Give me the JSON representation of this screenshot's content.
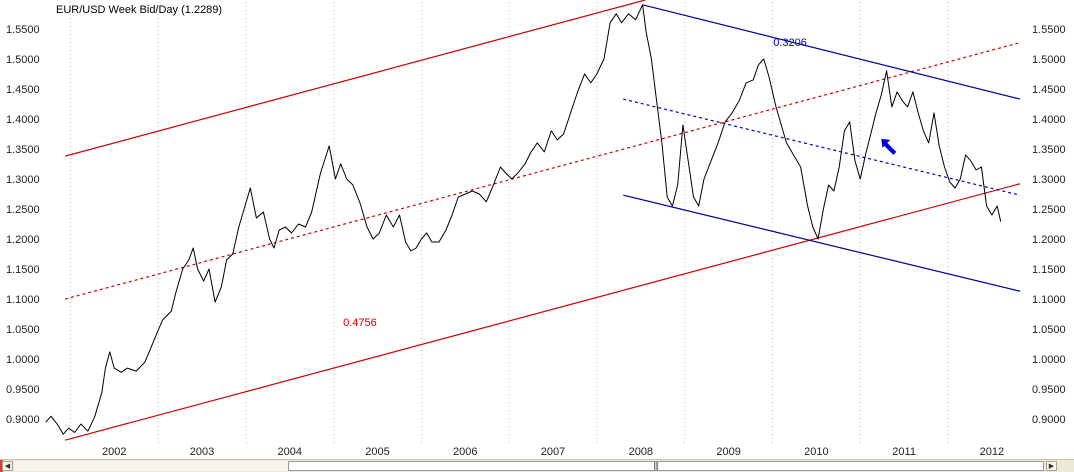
{
  "chart_data": {
    "type": "line",
    "title": "EUR/USD Week Bid/Day (1.2289)",
    "instrument": "EUR/USD",
    "last_value": 1.2289,
    "xlabel": "",
    "ylabel": "",
    "x_ticks": [
      "2002",
      "2003",
      "2004",
      "2005",
      "2006",
      "2007",
      "2008",
      "2009",
      "2010",
      "2011",
      "2012"
    ],
    "y_ticks": [
      "0.9000",
      "0.9500",
      "1.0000",
      "1.0500",
      "1.1000",
      "1.1500",
      "1.2000",
      "1.2500",
      "1.3000",
      "1.3500",
      "1.4000",
      "1.4500",
      "1.5000",
      "1.5500"
    ],
    "xlim": [
      2001.7,
      2012.9
    ],
    "ylim": [
      0.862,
      1.598
    ],
    "grid": "vertical-dotted",
    "y_axis_labels_both_sides": true,
    "series": [
      {
        "color": "#000000",
        "points": [
          [
            2001.72,
            0.895
          ],
          [
            2001.78,
            0.905
          ],
          [
            2001.86,
            0.89
          ],
          [
            2001.92,
            0.875
          ],
          [
            2001.98,
            0.885
          ],
          [
            2002.05,
            0.878
          ],
          [
            2002.12,
            0.892
          ],
          [
            2002.2,
            0.88
          ],
          [
            2002.28,
            0.905
          ],
          [
            2002.36,
            0.945
          ],
          [
            2002.4,
            0.985
          ],
          [
            2002.45,
            1.012
          ],
          [
            2002.5,
            0.985
          ],
          [
            2002.58,
            0.978
          ],
          [
            2002.65,
            0.985
          ],
          [
            2002.75,
            0.98
          ],
          [
            2002.85,
            0.995
          ],
          [
            2002.95,
            1.03
          ],
          [
            2003.05,
            1.065
          ],
          [
            2003.15,
            1.08
          ],
          [
            2003.2,
            1.11
          ],
          [
            2003.28,
            1.15
          ],
          [
            2003.35,
            1.165
          ],
          [
            2003.4,
            1.185
          ],
          [
            2003.45,
            1.15
          ],
          [
            2003.52,
            1.13
          ],
          [
            2003.58,
            1.15
          ],
          [
            2003.65,
            1.095
          ],
          [
            2003.72,
            1.12
          ],
          [
            2003.78,
            1.165
          ],
          [
            2003.85,
            1.175
          ],
          [
            2003.92,
            1.22
          ],
          [
            2004.0,
            1.26
          ],
          [
            2004.05,
            1.285
          ],
          [
            2004.12,
            1.235
          ],
          [
            2004.2,
            1.245
          ],
          [
            2004.27,
            1.2
          ],
          [
            2004.32,
            1.185
          ],
          [
            2004.38,
            1.215
          ],
          [
            2004.45,
            1.22
          ],
          [
            2004.52,
            1.21
          ],
          [
            2004.6,
            1.225
          ],
          [
            2004.68,
            1.22
          ],
          [
            2004.75,
            1.245
          ],
          [
            2004.85,
            1.31
          ],
          [
            2004.95,
            1.355
          ],
          [
            2005.02,
            1.3
          ],
          [
            2005.08,
            1.325
          ],
          [
            2005.15,
            1.3
          ],
          [
            2005.22,
            1.29
          ],
          [
            2005.3,
            1.26
          ],
          [
            2005.38,
            1.22
          ],
          [
            2005.45,
            1.2
          ],
          [
            2005.52,
            1.21
          ],
          [
            2005.6,
            1.24
          ],
          [
            2005.68,
            1.22
          ],
          [
            2005.75,
            1.24
          ],
          [
            2005.82,
            1.195
          ],
          [
            2005.88,
            1.18
          ],
          [
            2005.94,
            1.185
          ],
          [
            2006.0,
            1.2
          ],
          [
            2006.06,
            1.21
          ],
          [
            2006.12,
            1.195
          ],
          [
            2006.2,
            1.195
          ],
          [
            2006.28,
            1.215
          ],
          [
            2006.35,
            1.24
          ],
          [
            2006.42,
            1.27
          ],
          [
            2006.5,
            1.275
          ],
          [
            2006.58,
            1.28
          ],
          [
            2006.66,
            1.275
          ],
          [
            2006.74,
            1.262
          ],
          [
            2006.82,
            1.29
          ],
          [
            2006.9,
            1.32
          ],
          [
            2006.96,
            1.31
          ],
          [
            2007.03,
            1.3
          ],
          [
            2007.1,
            1.31
          ],
          [
            2007.18,
            1.325
          ],
          [
            2007.25,
            1.345
          ],
          [
            2007.32,
            1.36
          ],
          [
            2007.4,
            1.345
          ],
          [
            2007.48,
            1.38
          ],
          [
            2007.55,
            1.365
          ],
          [
            2007.62,
            1.375
          ],
          [
            2007.7,
            1.41
          ],
          [
            2007.78,
            1.445
          ],
          [
            2007.86,
            1.475
          ],
          [
            2007.93,
            1.46
          ],
          [
            2008.0,
            1.475
          ],
          [
            2008.08,
            1.5
          ],
          [
            2008.15,
            1.56
          ],
          [
            2008.22,
            1.575
          ],
          [
            2008.28,
            1.56
          ],
          [
            2008.36,
            1.575
          ],
          [
            2008.44,
            1.565
          ],
          [
            2008.52,
            1.59
          ],
          [
            2008.56,
            1.545
          ],
          [
            2008.62,
            1.5
          ],
          [
            2008.68,
            1.43
          ],
          [
            2008.74,
            1.36
          ],
          [
            2008.8,
            1.27
          ],
          [
            2008.86,
            1.255
          ],
          [
            2008.92,
            1.29
          ],
          [
            2008.98,
            1.39
          ],
          [
            2009.04,
            1.33
          ],
          [
            2009.1,
            1.27
          ],
          [
            2009.16,
            1.255
          ],
          [
            2009.22,
            1.3
          ],
          [
            2009.3,
            1.33
          ],
          [
            2009.38,
            1.36
          ],
          [
            2009.46,
            1.395
          ],
          [
            2009.54,
            1.41
          ],
          [
            2009.62,
            1.43
          ],
          [
            2009.7,
            1.46
          ],
          [
            2009.78,
            1.465
          ],
          [
            2009.84,
            1.49
          ],
          [
            2009.9,
            1.5
          ],
          [
            2009.96,
            1.47
          ],
          [
            2010.04,
            1.42
          ],
          [
            2010.1,
            1.39
          ],
          [
            2010.16,
            1.36
          ],
          [
            2010.24,
            1.34
          ],
          [
            2010.32,
            1.32
          ],
          [
            2010.4,
            1.255
          ],
          [
            2010.46,
            1.22
          ],
          [
            2010.52,
            1.2
          ],
          [
            2010.58,
            1.25
          ],
          [
            2010.64,
            1.29
          ],
          [
            2010.7,
            1.28
          ],
          [
            2010.76,
            1.32
          ],
          [
            2010.82,
            1.38
          ],
          [
            2010.88,
            1.395
          ],
          [
            2010.94,
            1.33
          ],
          [
            2011.0,
            1.3
          ],
          [
            2011.06,
            1.34
          ],
          [
            2011.12,
            1.375
          ],
          [
            2011.18,
            1.41
          ],
          [
            2011.24,
            1.44
          ],
          [
            2011.3,
            1.48
          ],
          [
            2011.36,
            1.42
          ],
          [
            2011.42,
            1.445
          ],
          [
            2011.48,
            1.43
          ],
          [
            2011.54,
            1.42
          ],
          [
            2011.6,
            1.445
          ],
          [
            2011.66,
            1.41
          ],
          [
            2011.72,
            1.38
          ],
          [
            2011.78,
            1.36
          ],
          [
            2011.84,
            1.41
          ],
          [
            2011.9,
            1.355
          ],
          [
            2011.96,
            1.32
          ],
          [
            2012.02,
            1.295
          ],
          [
            2012.08,
            1.285
          ],
          [
            2012.14,
            1.3
          ],
          [
            2012.2,
            1.34
          ],
          [
            2012.26,
            1.33
          ],
          [
            2012.32,
            1.315
          ],
          [
            2012.38,
            1.32
          ],
          [
            2012.44,
            1.255
          ],
          [
            2012.5,
            1.24
          ],
          [
            2012.56,
            1.255
          ],
          [
            2012.6,
            1.229
          ]
        ]
      }
    ],
    "trendlines": [
      {
        "role": "red-upper",
        "color": "#cc0000",
        "dash": "solid",
        "from": [
          2001.94,
          1.338
        ],
        "to": [
          2008.55,
          1.598
        ]
      },
      {
        "role": "red-middle",
        "color": "#cc0000",
        "dash": "dashed",
        "from": [
          2001.94,
          1.1
        ],
        "to": [
          2012.82,
          1.527
        ]
      },
      {
        "role": "red-lower",
        "color": "#cc0000",
        "dash": "solid",
        "from": [
          2001.94,
          0.865
        ],
        "to": [
          2012.82,
          1.292
        ]
      },
      {
        "role": "blue-upper",
        "color": "#000099",
        "dash": "solid",
        "from": [
          2008.52,
          1.59
        ],
        "to": [
          2012.82,
          1.433
        ]
      },
      {
        "role": "blue-middle",
        "color": "#0000cc",
        "dash": "dashed",
        "from": [
          2008.3,
          1.433
        ],
        "to": [
          2012.82,
          1.273
        ]
      },
      {
        "role": "blue-lower",
        "color": "#000099",
        "dash": "solid",
        "from": [
          2008.3,
          1.273
        ],
        "to": [
          2012.82,
          1.113
        ]
      }
    ],
    "annotations": [
      {
        "text": "0.3206",
        "color": "#0000cc",
        "x": 2010.2,
        "y": 1.521
      },
      {
        "text": "0.4756",
        "color": "#cc0000",
        "x": 2005.3,
        "y": 1.055
      }
    ],
    "arrow_marker": {
      "color": "#0000dd",
      "direction": "up-left",
      "x": 2011.32,
      "y": 1.355
    }
  },
  "scrollbar": {
    "left_button": "◀",
    "right_button": "▶",
    "grip": "|||"
  }
}
